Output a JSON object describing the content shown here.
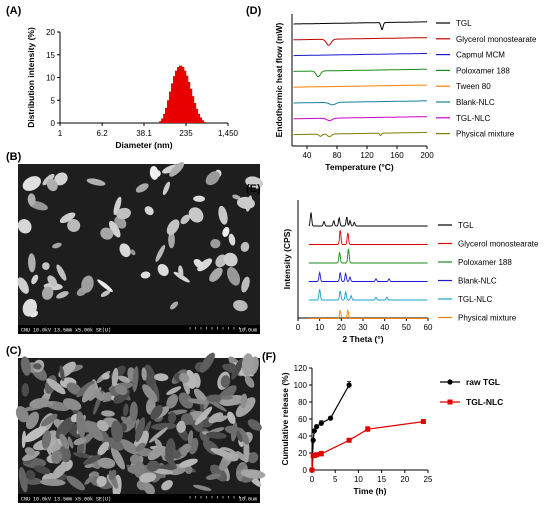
{
  "chart_data": [
    {
      "panel": "(A)",
      "type": "bar",
      "xlabel": "Diameter (nm)",
      "ylabel": "Distribution intensity (%)",
      "xscale": "log",
      "xticks": [
        "1",
        "6.2",
        "38.1",
        "235",
        "1,450"
      ],
      "xtick_values": [
        1,
        6.2,
        38.1,
        235,
        1450
      ],
      "yticks": [
        "0",
        "5",
        "10",
        "15",
        "20"
      ],
      "ylim": [
        0,
        20
      ],
      "color": "#e60000",
      "x": [
        79,
        86,
        94,
        102,
        111,
        121,
        132,
        144,
        157,
        171,
        186,
        203,
        221,
        241,
        262,
        286,
        311,
        339,
        369,
        402,
        438,
        477,
        520
      ],
      "values": [
        0.4,
        1.0,
        2.0,
        3.3,
        5.0,
        6.9,
        8.7,
        10.3,
        11.5,
        12.3,
        12.6,
        12.3,
        11.5,
        10.4,
        9.0,
        7.5,
        5.9,
        4.4,
        3.1,
        2.0,
        1.2,
        0.6,
        0.2
      ]
    },
    {
      "panel": "(D)",
      "type": "line",
      "xlabel": "Temperature (°C)",
      "ylabel": "Endothermic heat flow (mW)",
      "xlim": [
        20,
        200
      ],
      "xticks": [
        "40",
        "80",
        "120",
        "160",
        "200"
      ],
      "legend_position": "right",
      "series": [
        {
          "name": "TGL",
          "color": "#000000",
          "baseline": 0,
          "peaks": [
            [
              140,
              1.0,
              2.0
            ]
          ]
        },
        {
          "name": "Glycerol monostearate",
          "color": "#c00000",
          "baseline": 1,
          "peaks": [
            [
              69,
              0.85,
              4.5
            ]
          ]
        },
        {
          "name": "Capmul MCM",
          "color": "#1a1ad6",
          "baseline": 2,
          "peaks": []
        },
        {
          "name": "Poloxamer 188",
          "color": "#1a8a1a",
          "baseline": 3,
          "peaks": [
            [
              55,
              0.8,
              4.0
            ]
          ]
        },
        {
          "name": "Tween 80",
          "color": "#ff8000",
          "baseline": 4,
          "peaks": []
        },
        {
          "name": "Blank-NLC",
          "color": "#1a7f9f",
          "baseline": 5,
          "peaks": [
            [
              74,
              0.35,
              6.0
            ]
          ]
        },
        {
          "name": "TGL-NLC",
          "color": "#cc00cc",
          "baseline": 6,
          "peaks": [
            [
              70,
              0.35,
              5.0
            ]
          ]
        },
        {
          "name": "Physical mixture",
          "color": "#7f7f00",
          "baseline": 7,
          "peaks": [
            [
              58,
              0.3,
              3.0
            ],
            [
              70,
              0.4,
              3.5
            ],
            [
              138,
              0.35,
              1.5
            ]
          ]
        }
      ]
    },
    {
      "panel": "(E)",
      "type": "line",
      "xlabel": "2 Theta (°)",
      "ylabel": "Intensity (CPS)",
      "xlim": [
        0,
        60
      ],
      "xticks": [
        "0",
        "10",
        "20",
        "30",
        "40",
        "50",
        "60"
      ],
      "legend_position": "right",
      "series": [
        {
          "name": "TGL",
          "color": "#000000",
          "baseline": 0,
          "peaks": [
            [
              6.0,
              1.5
            ],
            [
              12.0,
              0.5
            ],
            [
              16.5,
              0.6
            ],
            [
              19.0,
              0.9
            ],
            [
              22.5,
              1.0
            ],
            [
              24.0,
              0.6
            ],
            [
              26.0,
              0.4
            ]
          ]
        },
        {
          "name": "Glycerol monostearate",
          "color": "#e00000",
          "baseline": 1,
          "peaks": [
            [
              19.5,
              1.6
            ],
            [
              23.0,
              1.3
            ]
          ]
        },
        {
          "name": "Poloxamer 188",
          "color": "#1a8a1a",
          "baseline": 2,
          "peaks": [
            [
              19.2,
              1.2
            ],
            [
              23.3,
              1.6
            ]
          ]
        },
        {
          "name": "Blank-NLC",
          "color": "#1a1ad6",
          "baseline": 3,
          "peaks": [
            [
              10.0,
              1.0
            ],
            [
              19.5,
              1.0
            ],
            [
              22.0,
              0.9
            ],
            [
              24.0,
              0.5
            ],
            [
              36.0,
              0.3
            ],
            [
              42.0,
              0.3
            ]
          ]
        },
        {
          "name": "TGL-NLC",
          "color": "#1aa0d0",
          "baseline": 4,
          "peaks": [
            [
              10.0,
              1.2
            ],
            [
              19.5,
              1.0
            ],
            [
              22.0,
              0.9
            ],
            [
              24.5,
              0.5
            ],
            [
              36.0,
              0.3
            ],
            [
              41.0,
              0.3
            ]
          ]
        },
        {
          "name": "Physical mixture",
          "color": "#ff8000",
          "baseline": 5,
          "peaks": [
            [
              19.5,
              0.9
            ],
            [
              23.0,
              0.9
            ]
          ]
        }
      ]
    },
    {
      "panel": "(F)",
      "type": "line",
      "xlabel": "Time (h)",
      "ylabel": "Cumulative release (%)",
      "xlim": [
        0,
        25
      ],
      "ylim": [
        0,
        120
      ],
      "xticks": [
        "0",
        "5",
        "10",
        "15",
        "20",
        "25"
      ],
      "yticks": [
        "0",
        "20",
        "40",
        "60",
        "80",
        "100",
        "120"
      ],
      "legend_position": "top-right",
      "series": [
        {
          "name": "raw TGL",
          "color": "#000000",
          "marker": "circle",
          "x": [
            0,
            0.25,
            0.5,
            1,
            2,
            4,
            8
          ],
          "y": [
            0,
            35,
            46,
            51,
            55,
            61,
            100
          ],
          "err": [
            0,
            2,
            2,
            2,
            3,
            2,
            4
          ]
        },
        {
          "name": "TGL-NLC",
          "color": "#e00000",
          "marker": "square",
          "x": [
            0,
            0.25,
            0.5,
            1,
            2,
            8,
            12,
            24
          ],
          "y": [
            0,
            17,
            17,
            18,
            19,
            35,
            48,
            57
          ],
          "err": [
            0,
            2,
            1,
            2,
            3,
            2,
            3,
            2
          ]
        }
      ]
    }
  ],
  "sem_images": [
    {
      "panel": "(B)",
      "caption": "CNU 10.0kV 13.5mm x5.00k SE(U)",
      "scale": "10.0um"
    },
    {
      "panel": "(C)",
      "caption": "CNU 10.0kV 13.5mm x5.00k SE(U)",
      "scale": "10.0um"
    }
  ]
}
